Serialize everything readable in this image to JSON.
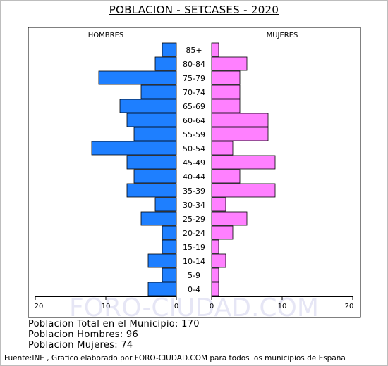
{
  "title": "POBLACION - SETCASES - 2020",
  "watermark": "FORO-CIUDAD.COM",
  "summary": {
    "total": "Poblacion Total en el Municipio: 170",
    "hombres": "Poblacion Hombres: 96",
    "mujeres": "Poblacion Mujeres: 74"
  },
  "source": "Fuente:INE , Grafico elaborado por FORO-CIUDAD.COM para todos los municipios de España",
  "colors": {
    "male": "#1e7fff",
    "female": "#ff80ff",
    "watermark": "#e6e6f5"
  },
  "chart_data": {
    "type": "bar",
    "orientation": "horizontal",
    "legend": {
      "left": "HOMBRES",
      "right": "MUJERES"
    },
    "categories": [
      "85+",
      "80-84",
      "75-79",
      "70-74",
      "65-69",
      "60-64",
      "55-59",
      "50-54",
      "45-49",
      "40-44",
      "35-39",
      "30-34",
      "25-29",
      "20-24",
      "15-19",
      "10-14",
      "5-9",
      "0-4"
    ],
    "series": [
      {
        "name": "HOMBRES",
        "values": [
          2,
          3,
          11,
          5,
          8,
          7,
          6,
          12,
          7,
          6,
          7,
          3,
          5,
          2,
          2,
          4,
          2,
          4
        ]
      },
      {
        "name": "MUJERES",
        "values": [
          1,
          5,
          4,
          4,
          4,
          8,
          8,
          3,
          9,
          4,
          9,
          2,
          5,
          3,
          1,
          2,
          1,
          1
        ]
      }
    ],
    "xlim": [
      0,
      20
    ],
    "x_ticks_left": [
      "20",
      "10",
      "0"
    ],
    "x_ticks_right": [
      "0",
      "10",
      "20"
    ]
  }
}
